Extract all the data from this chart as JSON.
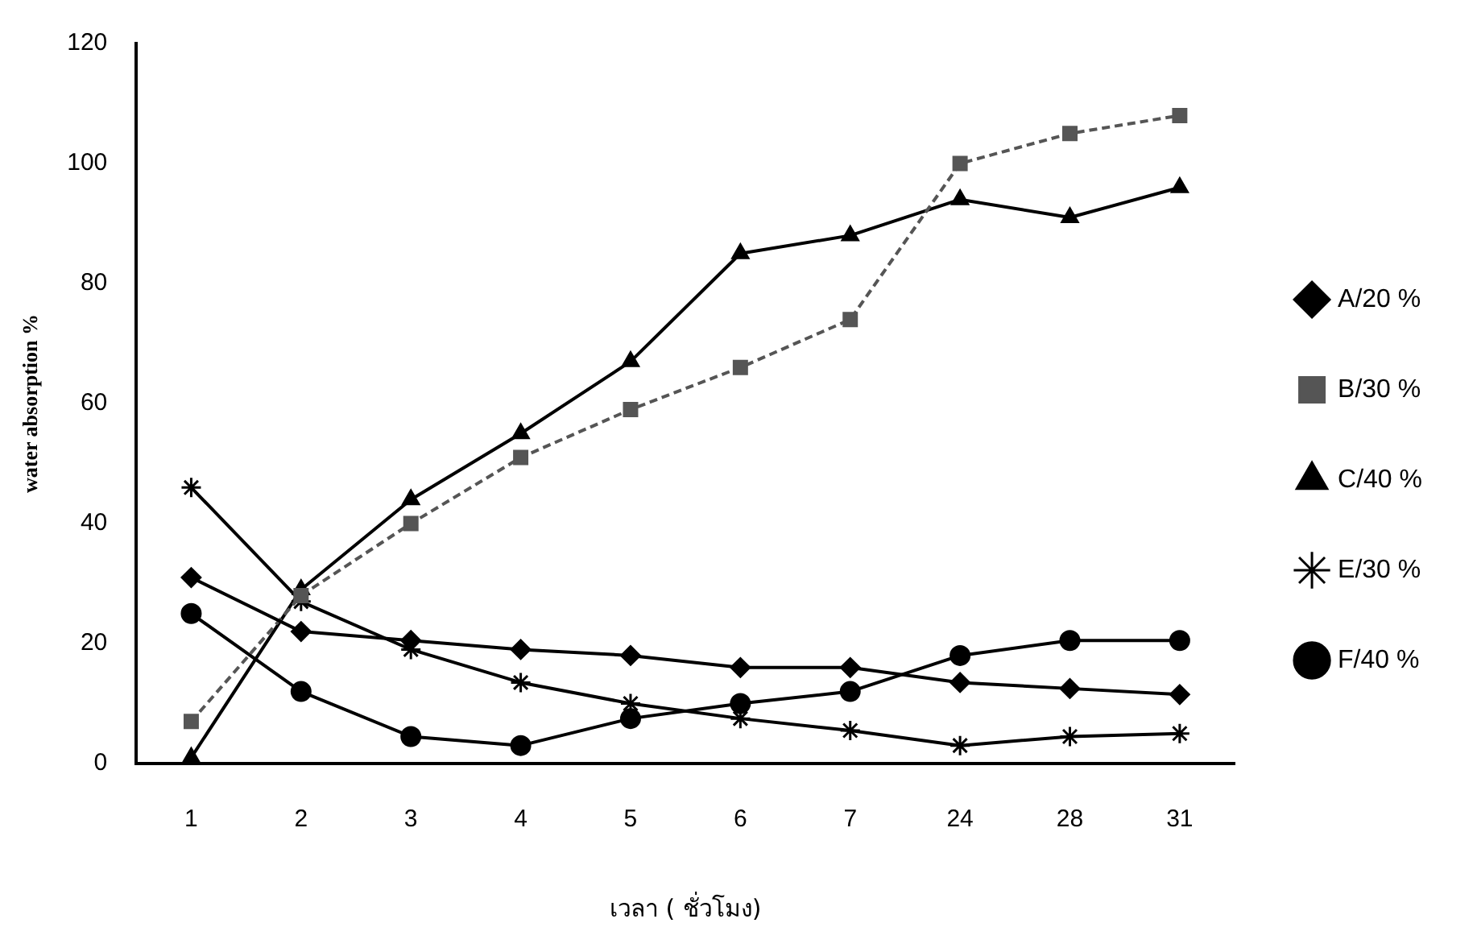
{
  "chart_data": {
    "type": "line",
    "xlabel": "เวลา ( ชั่วโมง)",
    "ylabel": "water absorption %",
    "categories": [
      "1",
      "2",
      "3",
      "4",
      "5",
      "6",
      "7",
      "24",
      "28",
      "31"
    ],
    "series": [
      {
        "name": "A/20 %",
        "color": "#000000",
        "marker": "diamond",
        "values": [
          31,
          22,
          20.5,
          19,
          18,
          16,
          16,
          13.5,
          12.5,
          11.5
        ]
      },
      {
        "name": "B/30 %",
        "color": "#555555",
        "marker": "square",
        "line_style": "dashed",
        "values": [
          7,
          28,
          40,
          51,
          59,
          66,
          74,
          100,
          105,
          108
        ]
      },
      {
        "name": "C/40 %",
        "color": "#000000",
        "marker": "triangle",
        "values": [
          1,
          29,
          44,
          55,
          67,
          85,
          88,
          94,
          91,
          96
        ]
      },
      {
        "name": "E/30 %",
        "color": "#000000",
        "marker": "cross",
        "values": [
          46,
          27,
          19,
          13.5,
          10,
          7.5,
          5.5,
          3,
          4.5,
          5
        ]
      },
      {
        "name": "F/40 %",
        "color": "#000000",
        "marker": "circle",
        "values": [
          25,
          12,
          4.5,
          3,
          7.5,
          10,
          12,
          18,
          20.5,
          20.5
        ]
      }
    ],
    "ylim": [
      0,
      120
    ],
    "yticks": [
      0,
      20,
      40,
      60,
      80,
      100,
      120
    ],
    "grid": false,
    "legend": "right"
  }
}
